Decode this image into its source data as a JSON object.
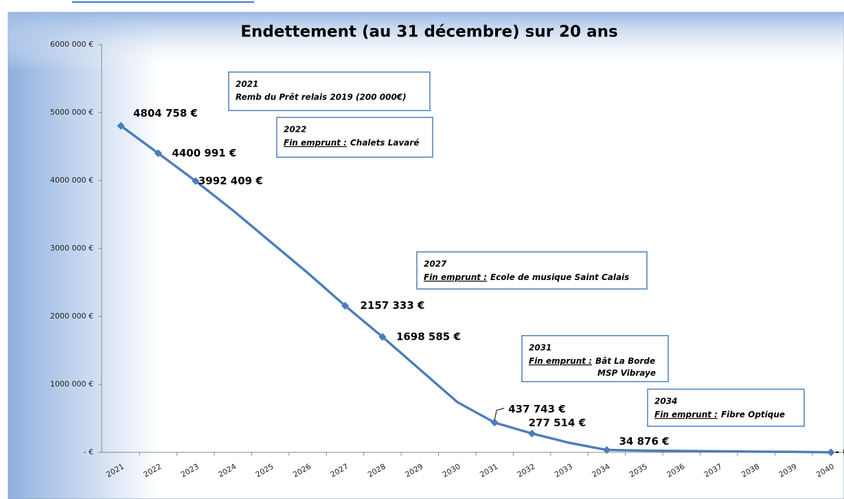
{
  "chart_data": {
    "type": "line",
    "title": "Endettement (au 31 décembre) sur 20 ans",
    "categories": [
      "2021",
      "2022",
      "2023",
      "2024",
      "2025",
      "2026",
      "2027",
      "2028",
      "2029",
      "2030",
      "2031",
      "2032",
      "2033",
      "2034",
      "2035",
      "2036",
      "2037",
      "2038",
      "2039",
      "2040"
    ],
    "series": [
      {
        "color": "#4a7ebb",
        "values": [
          4804758,
          4400991,
          3992409,
          3560000,
          3100000,
          2640000,
          2157333,
          1698585,
          1220000,
          740000,
          437743,
          277514,
          140000,
          34876,
          25000,
          20000,
          15000,
          10000,
          7000,
          0
        ],
        "value_labels": [
          "4804 758 €",
          "4400 991 €",
          "3992 409 €",
          null,
          null,
          null,
          "2157 333 €",
          "1698 585 €",
          null,
          null,
          "437 743 €",
          "277 514 €",
          null,
          "34 876 €",
          null,
          null,
          null,
          null,
          null,
          "- €"
        ]
      }
    ],
    "ylim": [
      0,
      6000000
    ],
    "yticks": [
      {
        "value": 0,
        "label": "-  €"
      },
      {
        "value": 1000000,
        "label": "1000 000 €"
      },
      {
        "value": 2000000,
        "label": "2000 000 €"
      },
      {
        "value": 3000000,
        "label": "3000 000 €"
      },
      {
        "value": 4000000,
        "label": "4000 000 €"
      },
      {
        "value": 5000000,
        "label": "5000 000 €"
      },
      {
        "value": 6000000,
        "label": "6000 000 €"
      }
    ],
    "annotations": [
      {
        "year": "2021",
        "text": [
          "Remb du Prêt relais 2019 (200 000€)"
        ]
      },
      {
        "year": "2022",
        "label": "Fin emprunt :",
        "text": [
          "Chalets Lavaré"
        ]
      },
      {
        "year": "2027",
        "label": "Fin emprunt :",
        "text": [
          "Ecole de musique Saint Calais"
        ]
      },
      {
        "year": "2031",
        "label": "Fin emprunt :",
        "text": [
          "Bât La Borde",
          "MSP Vibraye"
        ]
      },
      {
        "year": "2034",
        "label": "Fin emprunt :",
        "text": [
          "Fibre Optique"
        ]
      }
    ]
  }
}
